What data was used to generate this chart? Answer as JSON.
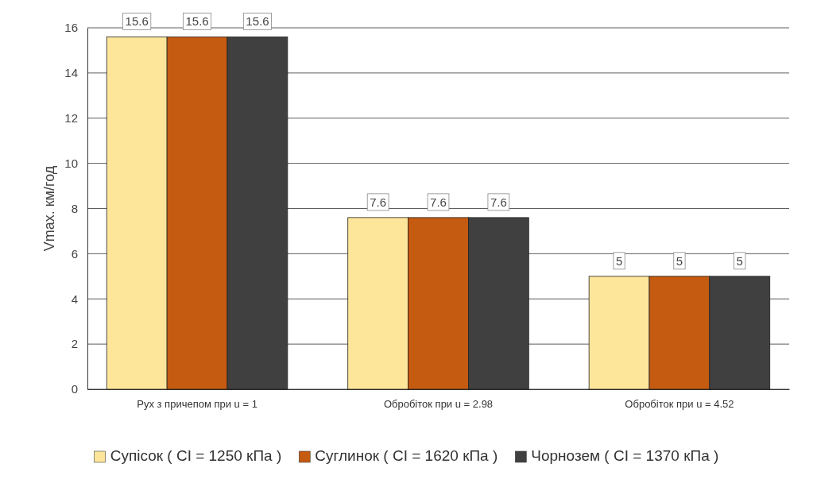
{
  "chart_data": {
    "type": "bar",
    "ylabel": "Vmax. км/год",
    "categories": [
      "Рух з причепом при u = 1",
      "Обробіток при u = 2.98",
      "Обробіток при u = 4.52"
    ],
    "series": [
      {
        "name": "Супісок ( CI = 1250 кПа )",
        "color": "#fde59a",
        "values": [
          15.6,
          7.6,
          5
        ]
      },
      {
        "name": "Суглинок ( CI = 1620 кПа )",
        "color": "#c55a11",
        "values": [
          15.6,
          7.6,
          5
        ]
      },
      {
        "name": "Чорнозем ( CI = 1370 кПа )",
        "color": "#404040",
        "values": [
          15.6,
          7.6,
          5
        ]
      }
    ],
    "ylim": [
      0,
      16
    ],
    "yticks": [
      0,
      2,
      4,
      6,
      8,
      10,
      12,
      14,
      16
    ],
    "grid": "y",
    "data_labels": true,
    "legend": "bottom"
  }
}
